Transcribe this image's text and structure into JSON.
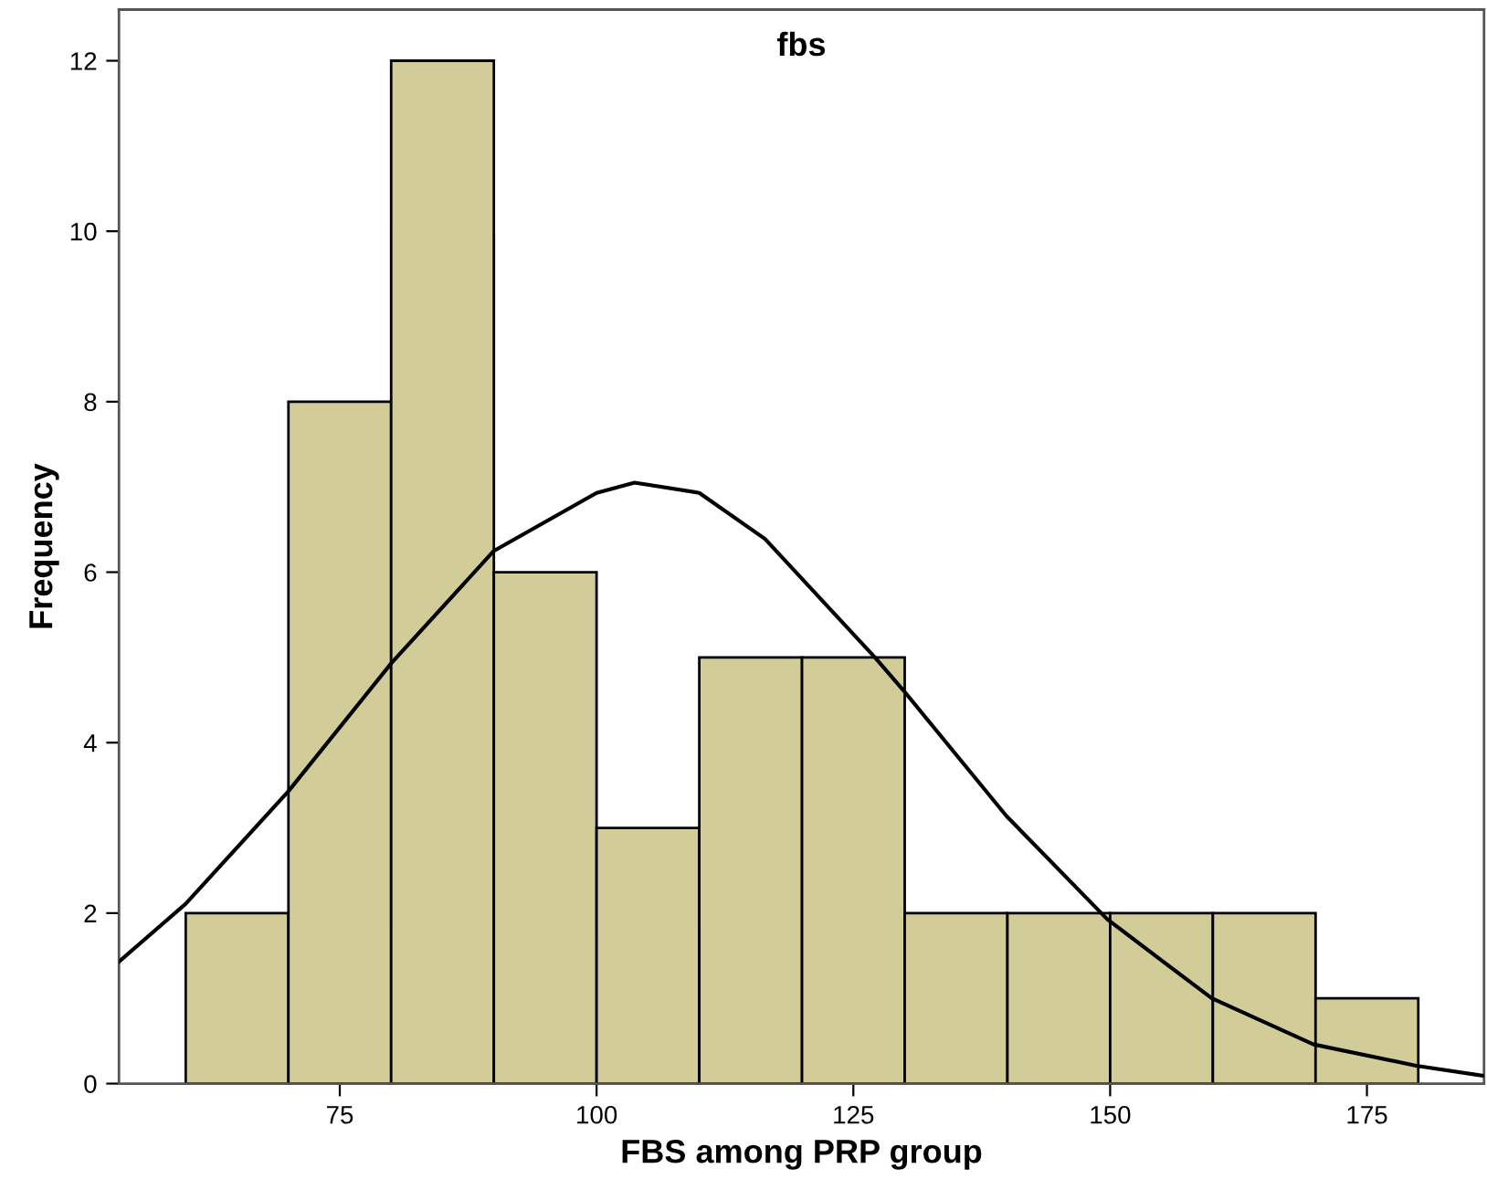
{
  "chart_data": {
    "type": "histogram",
    "title": "fbs",
    "xlabel": "FBS among PRP group",
    "ylabel": "Frequency",
    "bins": [
      60,
      70,
      80,
      90,
      100,
      110,
      120,
      130,
      140,
      150,
      160,
      170,
      180
    ],
    "values": [
      2,
      8,
      12,
      6,
      3,
      5,
      5,
      2,
      2,
      2,
      2,
      1
    ],
    "color": "#d2cd98",
    "series": [
      {
        "type": "line",
        "color": "#000000",
        "x": [
          53.5,
          60,
          70,
          80,
          90,
          100,
          103.7,
          110,
          116.4,
          127.1,
          129.9,
          139.9,
          149.7,
          159.9,
          169.8,
          179.8,
          186.4
        ],
        "values": [
          1.43,
          2.11,
          3.43,
          4.93,
          6.25,
          6.93,
          7.05,
          6.93,
          6.39,
          5.0,
          4.61,
          3.14,
          1.93,
          1.0,
          0.46,
          0.21,
          0.09
        ]
      }
    ],
    "xlim": [
      53.5,
      186.4
    ],
    "ylim": [
      0,
      12.6
    ],
    "xticks": [
      75,
      100,
      125,
      150,
      175
    ],
    "yticks": [
      0,
      2,
      4,
      6,
      8,
      10,
      12
    ],
    "grid": false
  }
}
